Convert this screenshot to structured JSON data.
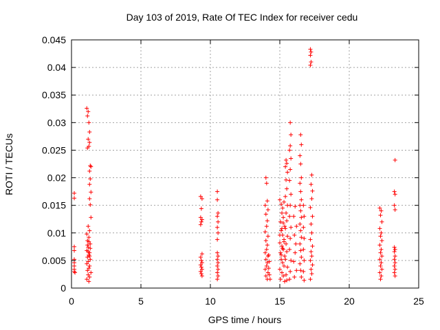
{
  "colors": {
    "series": "#ff0000",
    "grid": "#a0a0a0",
    "axis": "#000000"
  },
  "chart_data": {
    "type": "scatter",
    "title": "Day 103 of 2019, Rate Of TEC Index for receiver cedu",
    "xlabel": "GPS time / hours",
    "ylabel": "ROTI / TECUs",
    "xlim": [
      0,
      25
    ],
    "ylim": [
      0,
      0.045
    ],
    "xticks": [
      0,
      5,
      10,
      15,
      20,
      25
    ],
    "yticks": [
      0,
      0.005,
      0.01,
      0.015,
      0.02,
      0.025,
      0.03,
      0.035,
      0.04,
      0.045
    ],
    "xtick_labels": [
      "0",
      "5",
      "10",
      "15",
      "20",
      "25"
    ],
    "ytick_labels": [
      "0",
      "0.005",
      "0.01",
      "0.015",
      "0.02",
      "0.025",
      "0.03",
      "0.035",
      "0.04",
      "0.045"
    ],
    "grid": true,
    "marker": "+",
    "series": [
      {
        "name": "ROTI",
        "points": [
          [
            0.2,
            0.0172
          ],
          [
            0.2,
            0.0163
          ],
          [
            0.2,
            0.0075
          ],
          [
            0.2,
            0.0068
          ],
          [
            0.2,
            0.0052
          ],
          [
            0.2,
            0.0046
          ],
          [
            0.2,
            0.004
          ],
          [
            0.2,
            0.0034
          ],
          [
            0.2,
            0.003
          ],
          [
            0.25,
            0.0028
          ],
          [
            1.1,
            0.0326
          ],
          [
            1.2,
            0.032
          ],
          [
            1.15,
            0.0312
          ],
          [
            1.25,
            0.03
          ],
          [
            1.3,
            0.0283
          ],
          [
            1.2,
            0.027
          ],
          [
            1.3,
            0.0264
          ],
          [
            1.25,
            0.0257
          ],
          [
            1.15,
            0.0254
          ],
          [
            1.35,
            0.0222
          ],
          [
            1.4,
            0.022
          ],
          [
            1.3,
            0.0212
          ],
          [
            1.35,
            0.0198
          ],
          [
            1.3,
            0.0188
          ],
          [
            1.4,
            0.0174
          ],
          [
            1.3,
            0.0162
          ],
          [
            1.35,
            0.0151
          ],
          [
            1.4,
            0.0128
          ],
          [
            1.2,
            0.0112
          ],
          [
            1.3,
            0.0104
          ],
          [
            1.1,
            0.0098
          ],
          [
            1.25,
            0.0092
          ],
          [
            1.15,
            0.0086
          ],
          [
            1.35,
            0.008
          ],
          [
            1.2,
            0.0074
          ],
          [
            1.1,
            0.0068
          ],
          [
            1.3,
            0.0064
          ],
          [
            1.25,
            0.006
          ],
          [
            1.15,
            0.0056
          ],
          [
            1.35,
            0.0052
          ],
          [
            1.2,
            0.0048
          ],
          [
            1.1,
            0.0044
          ],
          [
            1.3,
            0.004
          ],
          [
            1.25,
            0.0036
          ],
          [
            1.15,
            0.0032
          ],
          [
            1.4,
            0.0028
          ],
          [
            1.2,
            0.0024
          ],
          [
            1.3,
            0.002
          ],
          [
            1.1,
            0.0016
          ],
          [
            1.25,
            0.0012
          ],
          [
            1.3,
            0.0058
          ],
          [
            1.2,
            0.0066
          ],
          [
            1.35,
            0.0072
          ],
          [
            1.15,
            0.0078
          ],
          [
            1.25,
            0.0084
          ],
          [
            9.3,
            0.0166
          ],
          [
            9.4,
            0.0162
          ],
          [
            9.35,
            0.0144
          ],
          [
            9.3,
            0.0128
          ],
          [
            9.4,
            0.0124
          ],
          [
            9.35,
            0.012
          ],
          [
            9.3,
            0.0115
          ],
          [
            9.4,
            0.0062
          ],
          [
            9.3,
            0.0056
          ],
          [
            9.35,
            0.005
          ],
          [
            9.4,
            0.0046
          ],
          [
            9.3,
            0.0042
          ],
          [
            9.35,
            0.0038
          ],
          [
            9.4,
            0.0034
          ],
          [
            9.3,
            0.003
          ],
          [
            9.35,
            0.0026
          ],
          [
            9.4,
            0.0022
          ],
          [
            10.5,
            0.0175
          ],
          [
            10.5,
            0.016
          ],
          [
            10.55,
            0.0136
          ],
          [
            10.5,
            0.013
          ],
          [
            10.55,
            0.012
          ],
          [
            10.5,
            0.011
          ],
          [
            10.55,
            0.01
          ],
          [
            10.5,
            0.0088
          ],
          [
            10.5,
            0.0064
          ],
          [
            10.55,
            0.0058
          ],
          [
            10.5,
            0.0052
          ],
          [
            10.55,
            0.0046
          ],
          [
            10.5,
            0.004
          ],
          [
            10.55,
            0.0034
          ],
          [
            10.5,
            0.0028
          ],
          [
            10.55,
            0.0022
          ],
          [
            10.5,
            0.0016
          ],
          [
            14.0,
            0.02
          ],
          [
            14.05,
            0.019
          ],
          [
            14.1,
            0.0158
          ],
          [
            13.95,
            0.015
          ],
          [
            14.15,
            0.0142
          ],
          [
            14.0,
            0.0134
          ],
          [
            14.1,
            0.0122
          ],
          [
            14.05,
            0.0112
          ],
          [
            13.95,
            0.0102
          ],
          [
            14.15,
            0.0094
          ],
          [
            14.0,
            0.0086
          ],
          [
            14.1,
            0.0078
          ],
          [
            14.05,
            0.007
          ],
          [
            13.95,
            0.0064
          ],
          [
            14.15,
            0.0058
          ],
          [
            14.0,
            0.0052
          ],
          [
            14.1,
            0.0046
          ],
          [
            14.05,
            0.004
          ],
          [
            13.95,
            0.0034
          ],
          [
            14.15,
            0.0028
          ],
          [
            14.0,
            0.0022
          ],
          [
            14.1,
            0.0016
          ],
          [
            14.2,
            0.006
          ],
          [
            14.25,
            0.0048
          ],
          [
            14.2,
            0.0036
          ],
          [
            14.25,
            0.0024
          ],
          [
            14.3,
            0.0016
          ],
          [
            15.0,
            0.016
          ],
          [
            15.1,
            0.0152
          ],
          [
            15.2,
            0.0145
          ],
          [
            15.3,
            0.0156
          ],
          [
            15.15,
            0.0136
          ],
          [
            15.25,
            0.0128
          ],
          [
            15.05,
            0.012
          ],
          [
            15.35,
            0.0112
          ],
          [
            15.1,
            0.0104
          ],
          [
            15.2,
            0.0096
          ],
          [
            15.3,
            0.0088
          ],
          [
            15.0,
            0.0082
          ],
          [
            15.15,
            0.0076
          ],
          [
            15.25,
            0.007
          ],
          [
            15.05,
            0.0064
          ],
          [
            15.35,
            0.0058
          ],
          [
            15.1,
            0.0052
          ],
          [
            15.2,
            0.0046
          ],
          [
            15.3,
            0.004
          ],
          [
            15.0,
            0.0034
          ],
          [
            15.15,
            0.0028
          ],
          [
            15.25,
            0.0022
          ],
          [
            15.05,
            0.0016
          ],
          [
            15.35,
            0.0012
          ],
          [
            15.1,
            0.006
          ],
          [
            15.2,
            0.0072
          ],
          [
            15.3,
            0.0084
          ],
          [
            15.0,
            0.0096
          ],
          [
            15.15,
            0.0108
          ],
          [
            15.25,
            0.0118
          ],
          [
            15.45,
            0.0232
          ],
          [
            15.5,
            0.0226
          ],
          [
            15.4,
            0.022
          ],
          [
            15.55,
            0.021
          ],
          [
            15.45,
            0.0196
          ],
          [
            15.5,
            0.018
          ],
          [
            15.4,
            0.0166
          ],
          [
            15.55,
            0.015
          ],
          [
            15.45,
            0.0136
          ],
          [
            15.5,
            0.0122
          ],
          [
            15.4,
            0.0108
          ],
          [
            15.55,
            0.0094
          ],
          [
            15.45,
            0.008
          ],
          [
            15.5,
            0.0066
          ],
          [
            15.4,
            0.0052
          ],
          [
            15.55,
            0.0038
          ],
          [
            15.45,
            0.0024
          ],
          [
            15.5,
            0.0014
          ],
          [
            15.75,
            0.03
          ],
          [
            15.8,
            0.0278
          ],
          [
            15.75,
            0.0258
          ],
          [
            15.7,
            0.025
          ],
          [
            15.8,
            0.0235
          ],
          [
            15.75,
            0.0215
          ],
          [
            15.7,
            0.0195
          ],
          [
            15.8,
            0.017
          ],
          [
            15.75,
            0.015
          ],
          [
            15.7,
            0.013
          ],
          [
            15.8,
            0.011
          ],
          [
            15.75,
            0.009
          ],
          [
            15.7,
            0.007
          ],
          [
            15.8,
            0.005
          ],
          [
            15.75,
            0.003
          ],
          [
            15.7,
            0.0016
          ],
          [
            16.1,
            0.0148
          ],
          [
            16.0,
            0.013
          ],
          [
            16.2,
            0.0112
          ],
          [
            16.05,
            0.0096
          ],
          [
            16.15,
            0.008
          ],
          [
            16.1,
            0.0064
          ],
          [
            16.0,
            0.0048
          ],
          [
            16.2,
            0.0032
          ],
          [
            16.05,
            0.002
          ],
          [
            16.5,
            0.0278
          ],
          [
            16.55,
            0.026
          ],
          [
            16.45,
            0.024
          ],
          [
            16.5,
            0.0225
          ],
          [
            16.55,
            0.02
          ],
          [
            16.45,
            0.019
          ],
          [
            16.5,
            0.0175
          ],
          [
            16.55,
            0.016
          ],
          [
            16.45,
            0.015
          ],
          [
            16.5,
            0.014
          ],
          [
            16.55,
            0.0128
          ],
          [
            16.45,
            0.0116
          ],
          [
            16.5,
            0.0104
          ],
          [
            16.55,
            0.0092
          ],
          [
            16.45,
            0.008
          ],
          [
            16.5,
            0.0068
          ],
          [
            16.55,
            0.0056
          ],
          [
            16.45,
            0.0044
          ],
          [
            16.5,
            0.0032
          ],
          [
            16.55,
            0.002
          ],
          [
            16.7,
            0.015
          ],
          [
            16.75,
            0.013
          ],
          [
            16.7,
            0.011
          ],
          [
            16.75,
            0.009
          ],
          [
            16.7,
            0.007
          ],
          [
            16.75,
            0.005
          ],
          [
            16.7,
            0.003
          ],
          [
            16.75,
            0.0014
          ],
          [
            17.2,
            0.0433
          ],
          [
            17.25,
            0.0428
          ],
          [
            17.2,
            0.0422
          ],
          [
            17.25,
            0.041
          ],
          [
            17.2,
            0.0404
          ],
          [
            17.3,
            0.0205
          ],
          [
            17.25,
            0.0188
          ],
          [
            17.35,
            0.0176
          ],
          [
            17.3,
            0.0162
          ],
          [
            17.2,
            0.0146
          ],
          [
            17.35,
            0.013
          ],
          [
            17.25,
            0.0116
          ],
          [
            17.3,
            0.01
          ],
          [
            17.2,
            0.0088
          ],
          [
            17.35,
            0.0076
          ],
          [
            17.25,
            0.0066
          ],
          [
            17.3,
            0.0058
          ],
          [
            17.2,
            0.005
          ],
          [
            17.35,
            0.0042
          ],
          [
            17.25,
            0.0034
          ],
          [
            17.3,
            0.0026
          ],
          [
            17.2,
            0.0016
          ],
          [
            22.2,
            0.0145
          ],
          [
            22.3,
            0.014
          ],
          [
            22.25,
            0.0132
          ],
          [
            22.35,
            0.012
          ],
          [
            22.2,
            0.0108
          ],
          [
            22.3,
            0.01
          ],
          [
            22.25,
            0.0094
          ],
          [
            22.35,
            0.0086
          ],
          [
            22.2,
            0.0078
          ],
          [
            22.3,
            0.007
          ],
          [
            22.25,
            0.0064
          ],
          [
            22.35,
            0.0058
          ],
          [
            22.2,
            0.0052
          ],
          [
            22.3,
            0.0046
          ],
          [
            22.25,
            0.004
          ],
          [
            22.35,
            0.0034
          ],
          [
            22.2,
            0.0028
          ],
          [
            22.3,
            0.0022
          ],
          [
            22.25,
            0.0016
          ],
          [
            23.3,
            0.0232
          ],
          [
            23.25,
            0.0175
          ],
          [
            23.3,
            0.017
          ],
          [
            23.25,
            0.015
          ],
          [
            23.3,
            0.0142
          ],
          [
            23.25,
            0.0074
          ],
          [
            23.3,
            0.007
          ],
          [
            23.25,
            0.0066
          ],
          [
            23.3,
            0.0058
          ],
          [
            23.25,
            0.0052
          ],
          [
            23.3,
            0.0046
          ],
          [
            23.25,
            0.004
          ],
          [
            23.3,
            0.0034
          ],
          [
            23.25,
            0.0028
          ],
          [
            23.3,
            0.0022
          ]
        ]
      }
    ]
  }
}
